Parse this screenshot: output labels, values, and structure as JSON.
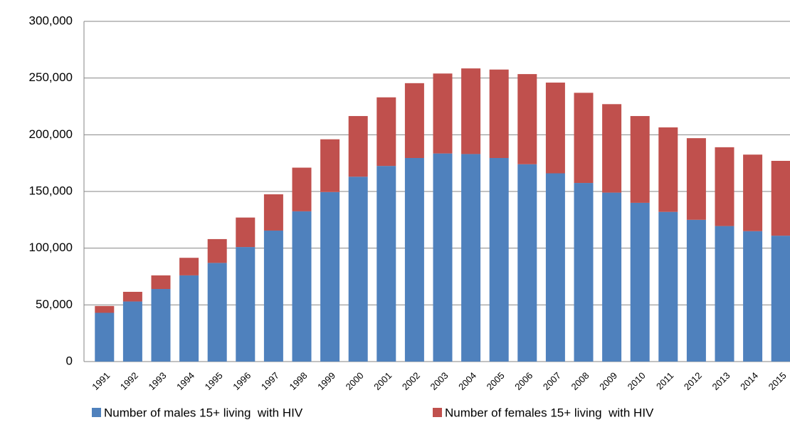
{
  "chart_data": {
    "type": "stacked-bar",
    "categories": [
      "1991",
      "1992",
      "1993",
      "1994",
      "1995",
      "1996",
      "1997",
      "1998",
      "1999",
      "2000",
      "2001",
      "2002",
      "2003",
      "2004",
      "2005",
      "2006",
      "2007",
      "2008",
      "2009",
      "2010",
      "2011",
      "2012",
      "2013",
      "2014",
      "2015"
    ],
    "series": [
      {
        "name": "Number of males 15+ living  with HIV",
        "color": "#4f81bd",
        "values": [
          43000,
          53000,
          64000,
          76000,
          87000,
          101000,
          115500,
          132500,
          149500,
          163000,
          172500,
          179500,
          183500,
          183000,
          179500,
          174000,
          166000,
          157500,
          149000,
          140000,
          132000,
          125000,
          119500,
          115000,
          111000
        ]
      },
      {
        "name": "Number of females 15+ living  with HIV",
        "color": "#c0504d",
        "values": [
          6000,
          8500,
          12000,
          15500,
          21000,
          26000,
          32000,
          38500,
          46500,
          53500,
          60500,
          66000,
          70500,
          75500,
          78000,
          79500,
          80000,
          79500,
          78000,
          76500,
          74500,
          72000,
          69500,
          67500,
          66000
        ]
      }
    ],
    "ylim": [
      0,
      300000
    ],
    "yticks": [
      0,
      {
        "value": 50000,
        "label": "50,000"
      },
      {
        "value": 100000,
        "label": "100,000"
      },
      {
        "value": 150000,
        "label": "150,000"
      },
      {
        "value": 200000,
        "label": "200,000"
      },
      {
        "value": 250000,
        "label": "250,000"
      },
      {
        "value": 300000,
        "label": "300,000"
      }
    ],
    "grid": true,
    "legend": "bottom"
  }
}
